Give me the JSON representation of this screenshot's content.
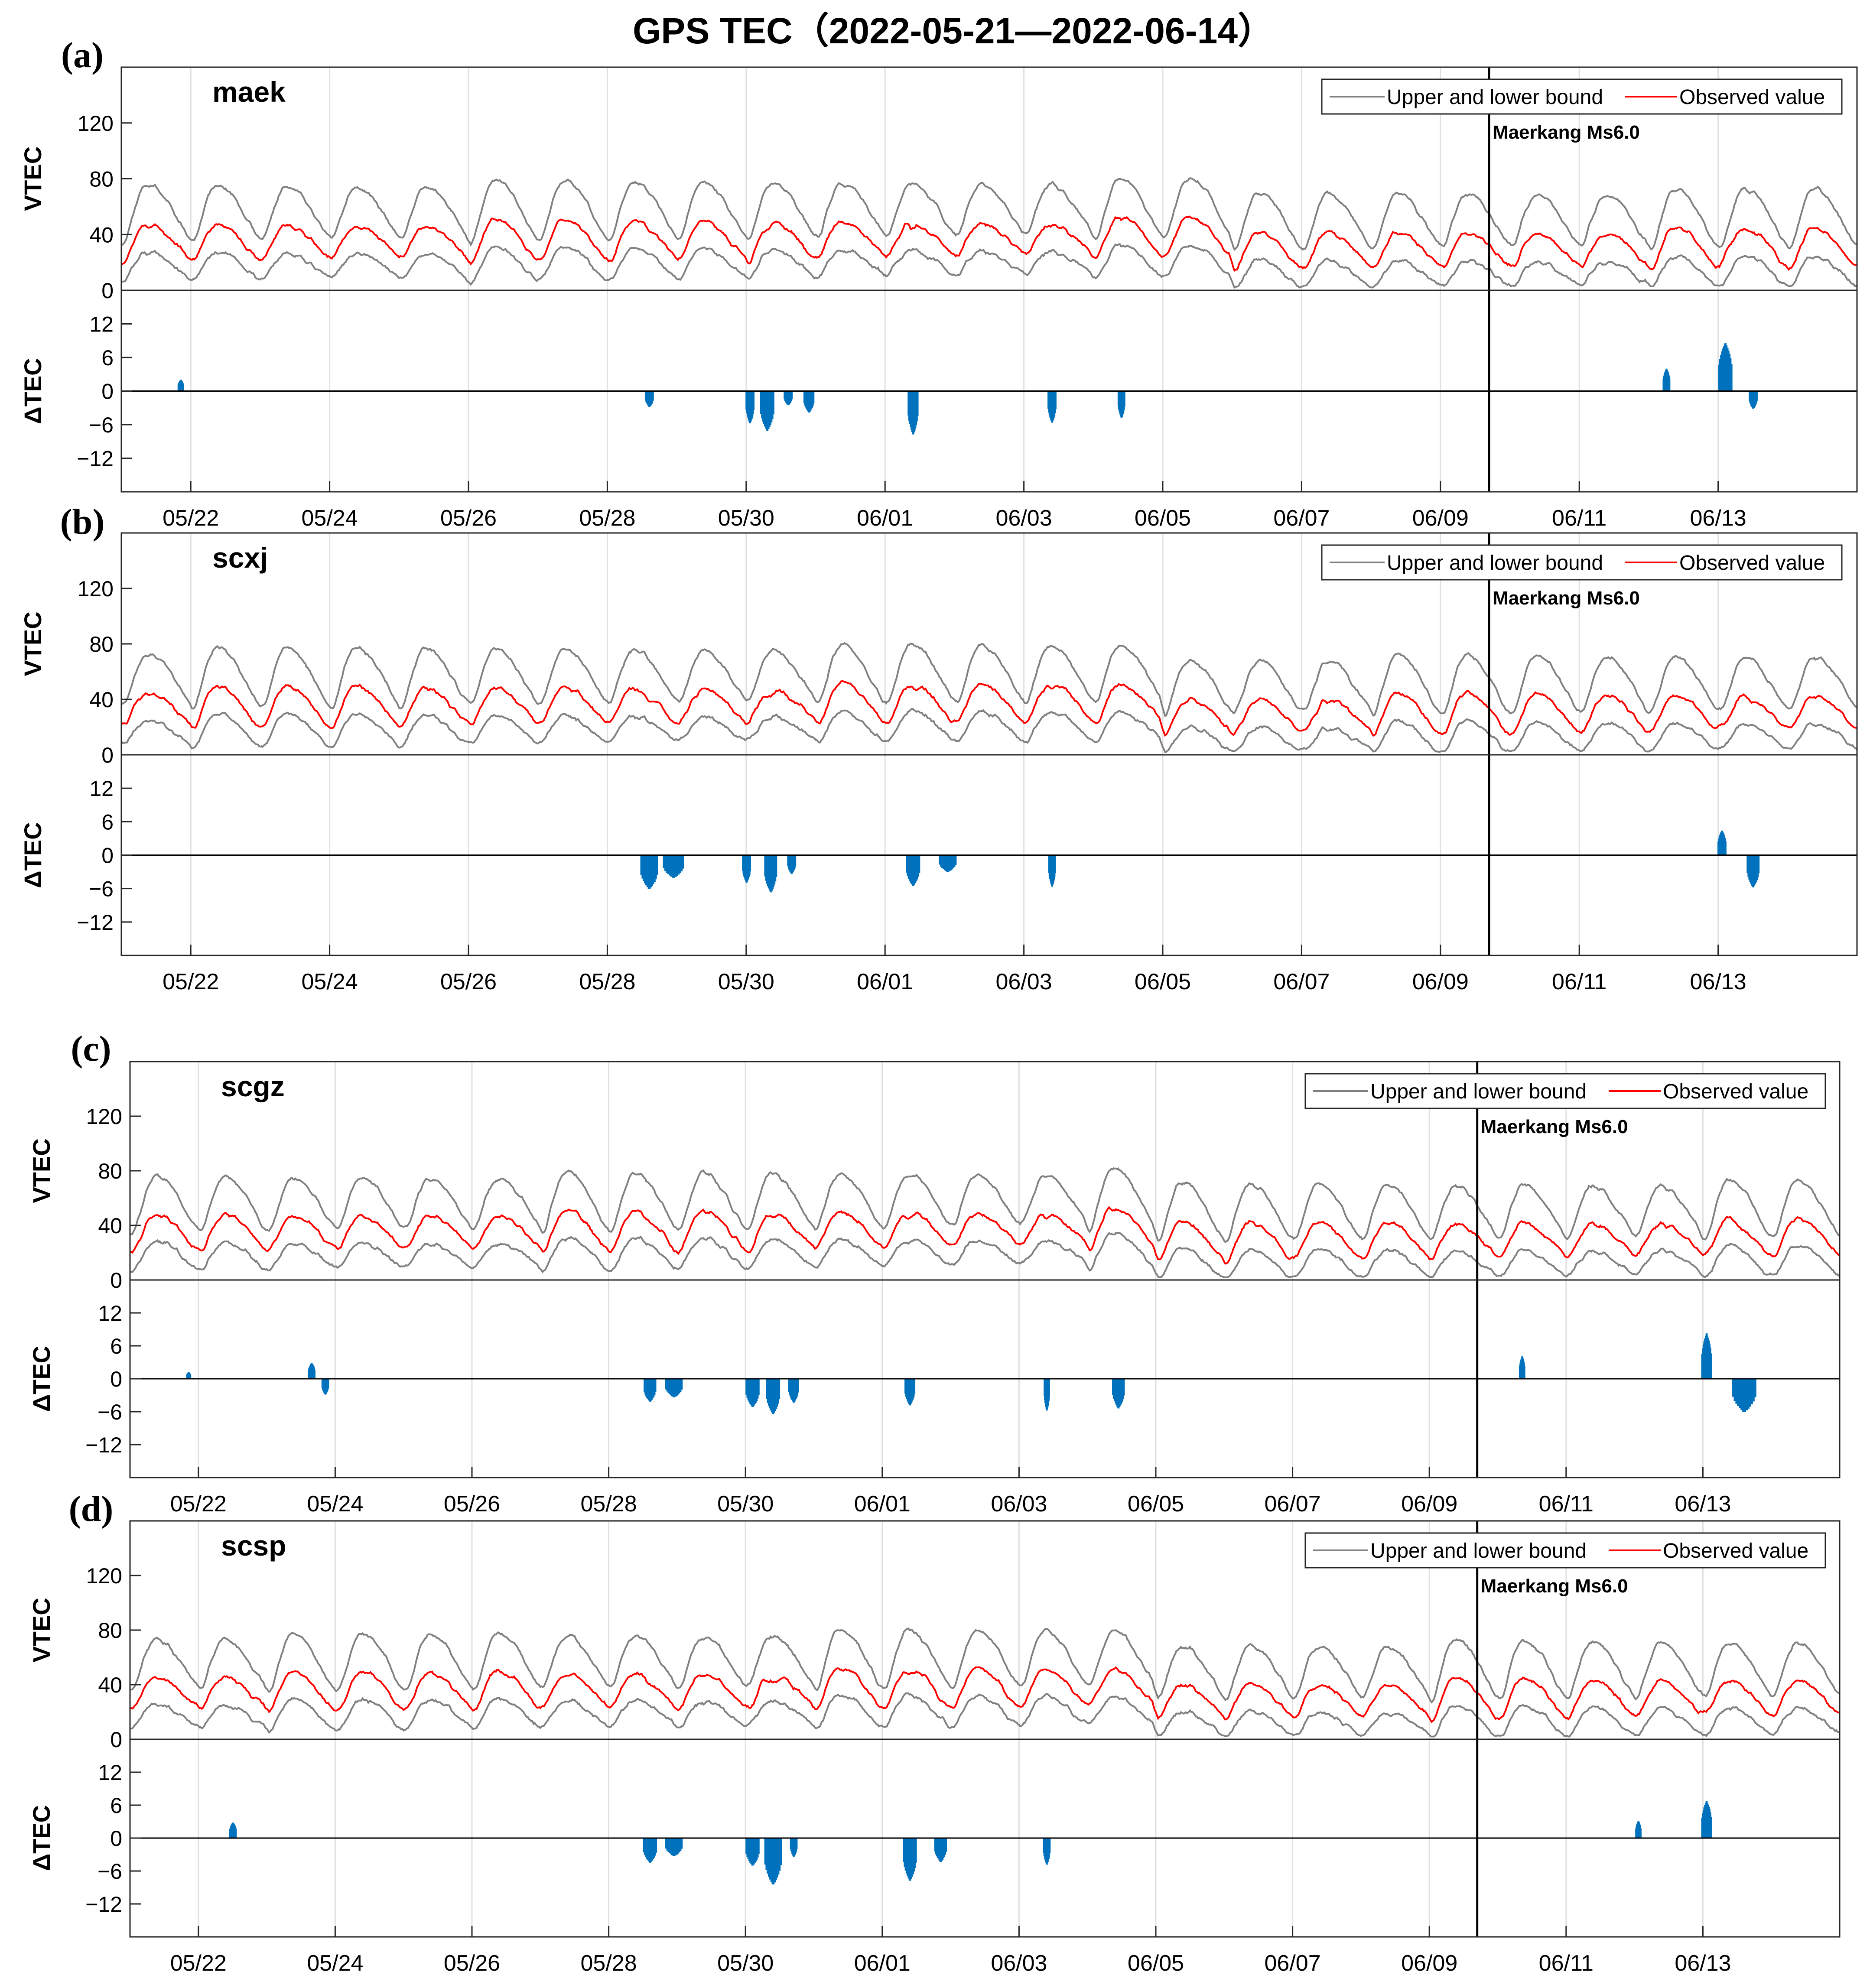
{
  "chart_data": {
    "type": "line",
    "title": "GPS TEC（2022-05-21—2022-06-14）",
    "x_range_days": [
      0,
      25
    ],
    "xticks": {
      "labels": [
        "05/22",
        "05/24",
        "05/26",
        "05/28",
        "05/30",
        "06/01",
        "06/03",
        "06/05",
        "06/07",
        "06/09",
        "06/11",
        "06/13"
      ],
      "values_days": [
        1,
        3,
        5,
        7,
        9,
        11,
        13,
        15,
        17,
        19,
        21,
        23
      ]
    },
    "legend": {
      "bound_label": "Upper and lower bound",
      "observed_label": "Observed value",
      "placement": "top-right"
    },
    "event": {
      "label": "Maerkang Ms6.0",
      "day": 19.7
    },
    "vtec_axis": {
      "label": "VTEC",
      "ylim": [
        0,
        160
      ],
      "ticks": [
        0,
        40,
        80,
        120
      ]
    },
    "dtec_axis": {
      "label": "ΔTEC",
      "ylim": [
        -18,
        18
      ],
      "ticks": [
        -12,
        -6,
        0,
        6,
        12
      ],
      "tick_labels": [
        "−12",
        "−6",
        "0",
        "6",
        "12"
      ]
    },
    "colors": {
      "bound": "#808080",
      "observed": "#ff0000",
      "anomaly": "#0072bd",
      "event": "#000000",
      "grid": "#e0e0e0"
    },
    "panels": [
      {
        "letter": "(a)",
        "station": "maek",
        "anomalies": [
          {
            "center": 0.85,
            "width": 0.08,
            "peak": 2.5
          },
          {
            "center": 7.6,
            "width": 0.12,
            "peak": -3.5
          },
          {
            "center": 9.05,
            "width": 0.12,
            "peak": -7.0
          },
          {
            "center": 9.3,
            "width": 0.2,
            "peak": -8.5
          },
          {
            "center": 9.6,
            "width": 0.12,
            "peak": -3.0
          },
          {
            "center": 9.9,
            "width": 0.15,
            "peak": -4.5
          },
          {
            "center": 11.4,
            "width": 0.15,
            "peak": -9.0
          },
          {
            "center": 13.4,
            "width": 0.12,
            "peak": -6.5
          },
          {
            "center": 14.4,
            "width": 0.1,
            "peak": -5.5
          },
          {
            "center": 22.25,
            "width": 0.1,
            "peak": 4.5
          },
          {
            "center": 23.1,
            "width": 0.2,
            "peak": 9.5
          },
          {
            "center": 23.5,
            "width": 0.12,
            "peak": -3.5
          }
        ]
      },
      {
        "letter": "(b)",
        "station": "scxj",
        "anomalies": [
          {
            "center": 7.6,
            "width": 0.25,
            "peak": -7.5
          },
          {
            "center": 7.95,
            "width": 0.3,
            "peak": -5.0
          },
          {
            "center": 9.0,
            "width": 0.12,
            "peak": -6.0
          },
          {
            "center": 9.35,
            "width": 0.18,
            "peak": -8.0
          },
          {
            "center": 9.65,
            "width": 0.12,
            "peak": -4.0
          },
          {
            "center": 11.4,
            "width": 0.2,
            "peak": -6.5
          },
          {
            "center": 11.9,
            "width": 0.25,
            "peak": -3.5
          },
          {
            "center": 13.4,
            "width": 0.1,
            "peak": -6.5
          },
          {
            "center": 23.05,
            "width": 0.12,
            "peak": 5.0
          },
          {
            "center": 23.5,
            "width": 0.18,
            "peak": -6.5
          }
        ]
      },
      {
        "letter": "(c)",
        "station": "scgz",
        "anomalies": [
          {
            "center": 0.85,
            "width": 0.06,
            "peak": 1.5
          },
          {
            "center": 2.65,
            "width": 0.1,
            "peak": 3.5
          },
          {
            "center": 2.85,
            "width": 0.1,
            "peak": -3.5
          },
          {
            "center": 7.6,
            "width": 0.18,
            "peak": -5.0
          },
          {
            "center": 7.95,
            "width": 0.25,
            "peak": -4.0
          },
          {
            "center": 9.1,
            "width": 0.2,
            "peak": -6.0
          },
          {
            "center": 9.4,
            "width": 0.2,
            "peak": -7.5
          },
          {
            "center": 9.7,
            "width": 0.15,
            "peak": -5.0
          },
          {
            "center": 11.4,
            "width": 0.15,
            "peak": -5.5
          },
          {
            "center": 13.4,
            "width": 0.08,
            "peak": -6.5
          },
          {
            "center": 14.45,
            "width": 0.18,
            "peak": -6.0
          },
          {
            "center": 20.35,
            "width": 0.08,
            "peak": 4.5
          },
          {
            "center": 23.05,
            "width": 0.15,
            "peak": 9.0
          },
          {
            "center": 23.6,
            "width": 0.35,
            "peak": -6.5
          }
        ]
      },
      {
        "letter": "(d)",
        "station": "scsp",
        "anomalies": [
          {
            "center": 1.5,
            "width": 0.1,
            "peak": 3.5
          },
          {
            "center": 7.6,
            "width": 0.2,
            "peak": -5.5
          },
          {
            "center": 7.95,
            "width": 0.25,
            "peak": -4.0
          },
          {
            "center": 9.1,
            "width": 0.2,
            "peak": -6.0
          },
          {
            "center": 9.4,
            "width": 0.25,
            "peak": -10.0
          },
          {
            "center": 9.7,
            "width": 0.1,
            "peak": -4.0
          },
          {
            "center": 11.4,
            "width": 0.2,
            "peak": -9.0
          },
          {
            "center": 11.85,
            "width": 0.18,
            "peak": -5.0
          },
          {
            "center": 13.4,
            "width": 0.1,
            "peak": -5.5
          },
          {
            "center": 22.05,
            "width": 0.08,
            "peak": 3.5
          },
          {
            "center": 23.05,
            "width": 0.15,
            "peak": 7.5
          }
        ]
      }
    ]
  }
}
